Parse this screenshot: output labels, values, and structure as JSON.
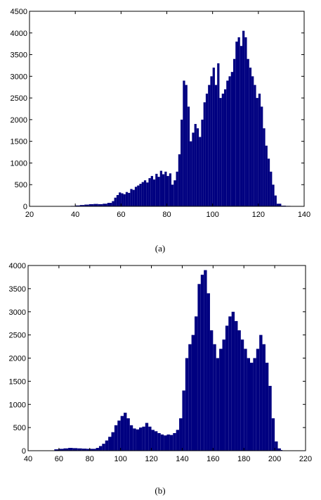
{
  "figure": {
    "caption_a": "(a)",
    "caption_b": "(b)"
  },
  "chart_data": [
    {
      "type": "bar",
      "title": "",
      "xlabel": "",
      "ylabel": "",
      "xlim": [
        20,
        140
      ],
      "ylim": [
        0,
        4500
      ],
      "xticks": [
        20,
        40,
        60,
        80,
        100,
        120,
        140
      ],
      "yticks": [
        0,
        500,
        1000,
        1500,
        2000,
        2500,
        3000,
        3500,
        4000,
        4500
      ],
      "color": "#000080",
      "grid": false,
      "bins": [
        [
          38,
          10
        ],
        [
          40,
          20
        ],
        [
          42,
          30
        ],
        [
          44,
          40
        ],
        [
          46,
          50
        ],
        [
          48,
          55
        ],
        [
          50,
          50
        ],
        [
          52,
          60
        ],
        [
          54,
          80
        ],
        [
          56,
          120
        ],
        [
          57,
          200
        ],
        [
          58,
          260
        ],
        [
          59,
          320
        ],
        [
          60,
          300
        ],
        [
          61,
          280
        ],
        [
          62,
          330
        ],
        [
          63,
          310
        ],
        [
          64,
          400
        ],
        [
          65,
          380
        ],
        [
          66,
          450
        ],
        [
          67,
          480
        ],
        [
          68,
          520
        ],
        [
          69,
          560
        ],
        [
          70,
          600
        ],
        [
          71,
          550
        ],
        [
          72,
          650
        ],
        [
          73,
          700
        ],
        [
          74,
          620
        ],
        [
          75,
          750
        ],
        [
          76,
          680
        ],
        [
          77,
          820
        ],
        [
          78,
          740
        ],
        [
          79,
          800
        ],
        [
          80,
          700
        ],
        [
          81,
          760
        ],
        [
          82,
          500
        ],
        [
          83,
          600
        ],
        [
          84,
          800
        ],
        [
          85,
          1200
        ],
        [
          86,
          2000
        ],
        [
          87,
          2900
        ],
        [
          88,
          2800
        ],
        [
          89,
          2300
        ],
        [
          90,
          1500
        ],
        [
          91,
          1700
        ],
        [
          92,
          1900
        ],
        [
          93,
          1800
        ],
        [
          94,
          1600
        ],
        [
          95,
          2000
        ],
        [
          96,
          2400
        ],
        [
          97,
          2600
        ],
        [
          98,
          2800
        ],
        [
          99,
          3000
        ],
        [
          100,
          3200
        ],
        [
          101,
          2800
        ],
        [
          102,
          3300
        ],
        [
          103,
          2500
        ],
        [
          104,
          2600
        ],
        [
          105,
          2700
        ],
        [
          106,
          2900
        ],
        [
          107,
          3000
        ],
        [
          108,
          3100
        ],
        [
          109,
          3400
        ],
        [
          110,
          3800
        ],
        [
          111,
          3900
        ],
        [
          112,
          3700
        ],
        [
          113,
          4050
        ],
        [
          114,
          3900
        ],
        [
          115,
          3400
        ],
        [
          116,
          3200
        ],
        [
          117,
          3000
        ],
        [
          118,
          2800
        ],
        [
          119,
          2500
        ],
        [
          120,
          2600
        ],
        [
          121,
          2300
        ],
        [
          122,
          1800
        ],
        [
          123,
          1400
        ],
        [
          124,
          1100
        ],
        [
          125,
          800
        ],
        [
          126,
          500
        ],
        [
          127,
          250
        ],
        [
          128,
          60
        ],
        [
          130,
          15
        ],
        [
          132,
          10
        ],
        [
          134,
          5
        ]
      ]
    },
    {
      "type": "bar",
      "title": "",
      "xlabel": "",
      "ylabel": "",
      "xlim": [
        40,
        220
      ],
      "ylim": [
        0,
        4000
      ],
      "xticks": [
        40,
        60,
        80,
        100,
        120,
        140,
        160,
        180,
        200,
        220
      ],
      "yticks": [
        0,
        500,
        1000,
        1500,
        2000,
        2500,
        3000,
        3500,
        4000
      ],
      "color": "#000080",
      "grid": false,
      "bins": [
        [
          57,
          30
        ],
        [
          60,
          40
        ],
        [
          63,
          50
        ],
        [
          66,
          60
        ],
        [
          69,
          55
        ],
        [
          72,
          50
        ],
        [
          75,
          45
        ],
        [
          78,
          40
        ],
        [
          81,
          40
        ],
        [
          84,
          60
        ],
        [
          86,
          100
        ],
        [
          88,
          150
        ],
        [
          90,
          220
        ],
        [
          92,
          300
        ],
        [
          94,
          400
        ],
        [
          96,
          550
        ],
        [
          98,
          650
        ],
        [
          100,
          750
        ],
        [
          102,
          820
        ],
        [
          104,
          700
        ],
        [
          106,
          550
        ],
        [
          108,
          480
        ],
        [
          110,
          460
        ],
        [
          112,
          500
        ],
        [
          114,
          520
        ],
        [
          116,
          600
        ],
        [
          118,
          520
        ],
        [
          120,
          450
        ],
        [
          122,
          420
        ],
        [
          124,
          380
        ],
        [
          126,
          350
        ],
        [
          128,
          330
        ],
        [
          130,
          350
        ],
        [
          132,
          340
        ],
        [
          134,
          380
        ],
        [
          136,
          450
        ],
        [
          138,
          700
        ],
        [
          140,
          1300
        ],
        [
          142,
          2000
        ],
        [
          144,
          2300
        ],
        [
          146,
          2500
        ],
        [
          148,
          2900
        ],
        [
          150,
          3600
        ],
        [
          152,
          3800
        ],
        [
          154,
          3900
        ],
        [
          156,
          3400
        ],
        [
          158,
          2600
        ],
        [
          160,
          2300
        ],
        [
          162,
          2000
        ],
        [
          164,
          2200
        ],
        [
          166,
          2400
        ],
        [
          168,
          2700
        ],
        [
          170,
          2900
        ],
        [
          172,
          3000
        ],
        [
          174,
          2800
        ],
        [
          176,
          2600
        ],
        [
          178,
          2400
        ],
        [
          180,
          2200
        ],
        [
          182,
          2000
        ],
        [
          184,
          1900
        ],
        [
          186,
          2000
        ],
        [
          188,
          2200
        ],
        [
          190,
          2500
        ],
        [
          192,
          2300
        ],
        [
          194,
          1900
        ],
        [
          196,
          1400
        ],
        [
          198,
          700
        ],
        [
          200,
          200
        ],
        [
          202,
          50
        ],
        [
          204,
          15
        ]
      ]
    }
  ]
}
